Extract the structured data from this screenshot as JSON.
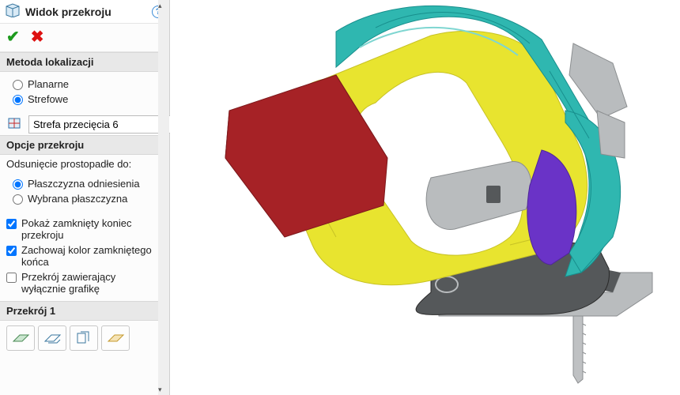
{
  "panel": {
    "title": "Widok przekroju",
    "sections": {
      "localization": {
        "header": "Metoda lokalizacji",
        "planar": "Planarne",
        "zonal": "Strefowe",
        "zone_field_value": "Strefa przecięcia 6"
      },
      "options": {
        "header": "Opcje przekroju",
        "offset_label": "Odsunięcie prostopadłe do:",
        "ref_plane": "Płaszczyzna odniesienia",
        "sel_plane": "Wybrana płaszczyzna",
        "show_closed_end": "Pokaż zamknięty koniec przekroju",
        "keep_color": "Zachowaj kolor zamkniętego końca",
        "graphics_only": "Przekrój zawierający wyłącznie grafikę"
      },
      "section1": {
        "header": "Przekrój 1"
      }
    }
  },
  "render": {
    "colors": {
      "teal": "#2fb7b0",
      "teal_dark": "#188f8d",
      "yellow": "#e8e42f",
      "yellow_dark": "#c7c225",
      "red": "#a62226",
      "red_dark": "#7e1a1d",
      "purple": "#6a33c7",
      "gray": "#b9bcbe",
      "gray_dark": "#8b8e90",
      "dark": "#55585a",
      "blade": "#bfc1c3",
      "black": "#2a2a2a"
    }
  }
}
